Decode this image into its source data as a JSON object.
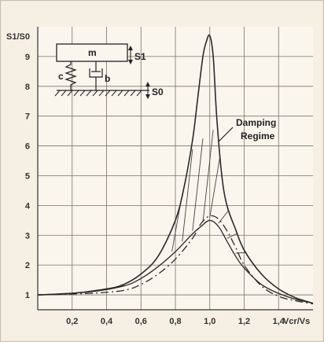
{
  "chart_data": {
    "type": "line",
    "xlabel": "Vcr/Vs",
    "ylabel": "S1/S0",
    "xlim": [
      0,
      1.6
    ],
    "ylim": [
      0.5,
      10
    ],
    "x_ticks": [
      "0,2",
      "0,4",
      "0,6",
      "0,8",
      "1,0",
      "1,2",
      "1,4"
    ],
    "y_ticks": [
      "1",
      "2",
      "3",
      "4",
      "5",
      "6",
      "7",
      "8",
      "9"
    ],
    "grid": true,
    "annotation": [
      "Damping",
      "Regime"
    ],
    "series": [
      {
        "style": "solid",
        "x": [
          0.0,
          0.2,
          0.4,
          0.5,
          0.6,
          0.7,
          0.8,
          0.85,
          0.9,
          0.93,
          0.96,
          0.98,
          1.0,
          1.02,
          1.04,
          1.07,
          1.1,
          1.15,
          1.2,
          1.3,
          1.4,
          1.5,
          1.6
        ],
        "y": [
          1.0,
          1.05,
          1.2,
          1.35,
          1.7,
          2.3,
          3.5,
          4.6,
          6.2,
          7.6,
          9.0,
          9.5,
          9.7,
          9.0,
          7.0,
          5.0,
          4.0,
          3.2,
          2.5,
          1.7,
          1.2,
          0.9,
          0.72
        ]
      },
      {
        "style": "solid-lower",
        "x": [
          0.0,
          0.3,
          0.5,
          0.6,
          0.7,
          0.8,
          0.9,
          0.95,
          1.0,
          1.05,
          1.1,
          1.15,
          1.2,
          1.3,
          1.4,
          1.5,
          1.6
        ],
        "y": [
          1.0,
          1.1,
          1.3,
          1.55,
          1.95,
          2.45,
          3.05,
          3.3,
          3.5,
          3.3,
          2.8,
          2.3,
          1.9,
          1.35,
          1.05,
          0.85,
          0.72
        ]
      },
      {
        "style": "dash-dot",
        "x": [
          0.0,
          0.3,
          0.5,
          0.6,
          0.7,
          0.8,
          0.9,
          0.95,
          1.0,
          1.05,
          1.1,
          1.15,
          1.2,
          1.3,
          1.4,
          1.5,
          1.6
        ],
        "y": [
          1.0,
          1.05,
          1.15,
          1.35,
          1.7,
          2.2,
          2.9,
          3.4,
          3.65,
          3.55,
          3.15,
          2.6,
          2.0,
          1.3,
          0.95,
          0.8,
          0.7
        ]
      }
    ]
  },
  "inset": {
    "mass": "m",
    "spring": "c",
    "damper": "b",
    "s1": "S1",
    "s0": "S0"
  }
}
